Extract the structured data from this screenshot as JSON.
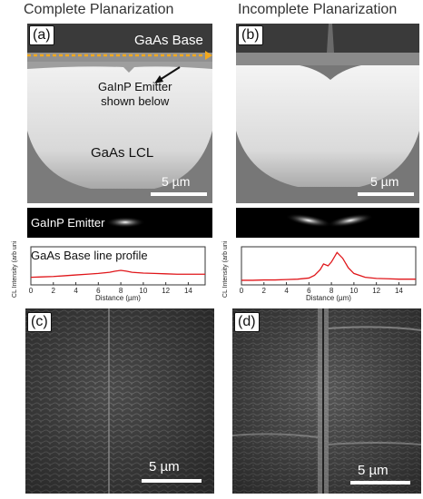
{
  "titles": {
    "left": "Complete Planarization",
    "right": "Incomplete Planarization"
  },
  "panels": {
    "a": {
      "tag": "(a)",
      "base_label": "GaAs Base",
      "emitter_note": "GaInP Emitter\nshown below",
      "lcl_label": "GaAs LCL",
      "scale": "5 µm"
    },
    "b": {
      "tag": "(b)",
      "scale": "5 µm"
    },
    "c": {
      "tag": "(c)",
      "scale": "5 µm"
    },
    "d": {
      "tag": "(d)",
      "scale": "5 µm"
    }
  },
  "strips": {
    "left_label": "GaInP Emitter"
  },
  "profiles": {
    "left_title": "GaAs Base line profile",
    "ylabel": "CL Intensity (arb units)",
    "xlabel": "Distance (µm)",
    "ticks": [
      "0",
      "2",
      "4",
      "6",
      "8",
      "10",
      "12",
      "14"
    ],
    "line_color": "#e0161a",
    "arrow_color": "#f2a81d"
  },
  "chart_data": [
    {
      "type": "line",
      "title": "GaAs Base line profile",
      "xlabel": "Distance (µm)",
      "ylabel": "CL Intensity (arb units)",
      "xlim": [
        0,
        15.5
      ],
      "x": [
        0,
        1,
        2,
        3,
        4,
        5,
        6,
        7,
        7.5,
        8,
        8.5,
        9,
        10,
        11,
        12,
        13,
        14,
        15.5
      ],
      "values": [
        0.2,
        0.21,
        0.22,
        0.24,
        0.26,
        0.28,
        0.3,
        0.33,
        0.36,
        0.38,
        0.36,
        0.33,
        0.31,
        0.3,
        0.29,
        0.28,
        0.28,
        0.28
      ]
    },
    {
      "type": "line",
      "xlabel": "Distance (µm)",
      "ylabel": "CL Intensity (arb units)",
      "xlim": [
        0,
        15.5
      ],
      "x": [
        0,
        1,
        2,
        3,
        4,
        5,
        6,
        6.5,
        7,
        7.3,
        7.7,
        8,
        8.5,
        9,
        9.5,
        10,
        11,
        12,
        13,
        14,
        15.5
      ],
      "values": [
        0.12,
        0.12,
        0.13,
        0.13,
        0.14,
        0.15,
        0.18,
        0.25,
        0.4,
        0.55,
        0.5,
        0.6,
        0.85,
        0.7,
        0.45,
        0.3,
        0.2,
        0.17,
        0.16,
        0.15,
        0.15
      ]
    }
  ]
}
